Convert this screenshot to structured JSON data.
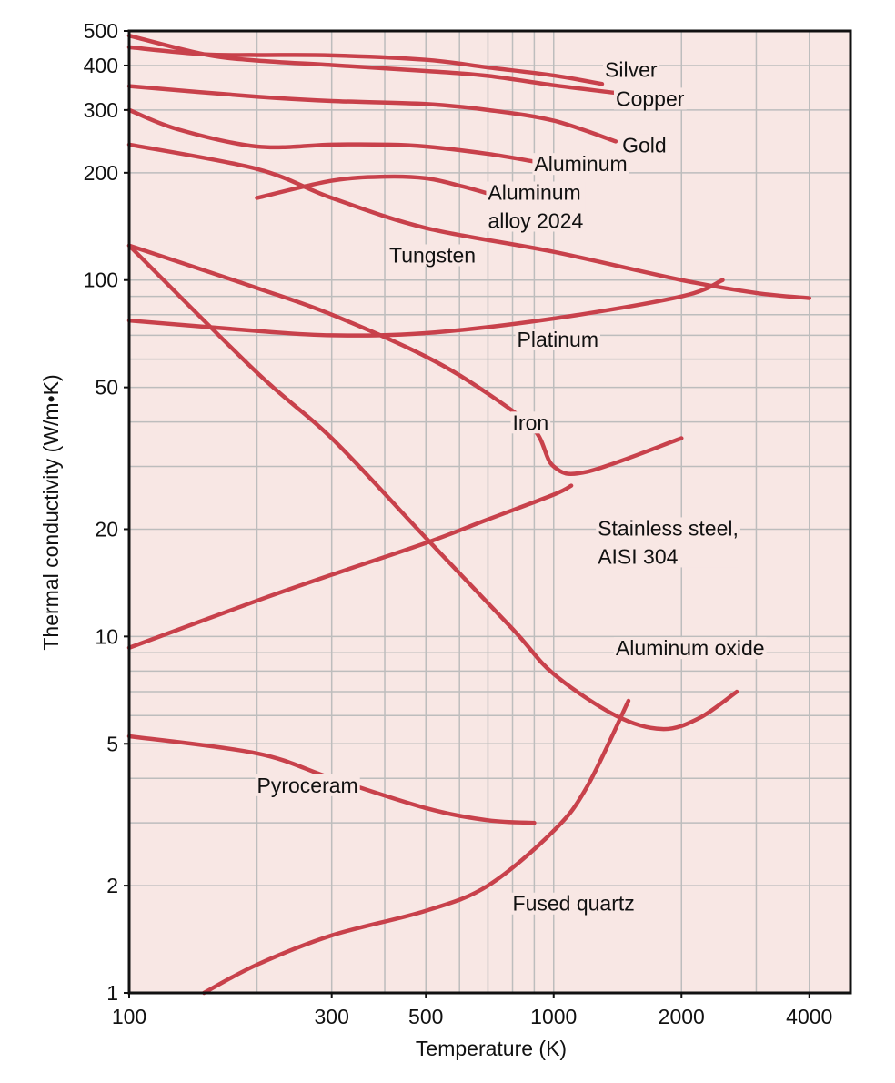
{
  "chart_data": {
    "type": "line",
    "title": "",
    "xlabel": "Temperature (K)",
    "ylabel": "Thermal conductivity (W/m•K)",
    "xscale": "log",
    "yscale": "log",
    "xlim": [
      100,
      5000
    ],
    "ylim": [
      1,
      500
    ],
    "grid": true,
    "legend": "none (labels placed next to curves)",
    "colors": {
      "line": "#c8414b",
      "background": "#f8e7e4",
      "grid": "#bdbdbd",
      "frame": "#111111"
    },
    "x_ticks": [
      {
        "label": "100",
        "value": 100
      },
      {
        "label": "300",
        "value": 300
      },
      {
        "label": "500",
        "value": 500
      },
      {
        "label": "1000",
        "value": 1000
      },
      {
        "label": "2000",
        "value": 2000
      },
      {
        "label": "4000",
        "value": 4000
      }
    ],
    "y_ticks": [
      {
        "label": "1",
        "value": 1
      },
      {
        "label": "2",
        "value": 2
      },
      {
        "label": "5",
        "value": 5
      },
      {
        "label": "10",
        "value": 10
      },
      {
        "label": "20",
        "value": 20
      },
      {
        "label": "50",
        "value": 50
      },
      {
        "label": "100",
        "value": 100
      },
      {
        "label": "200",
        "value": 200
      },
      {
        "label": "300",
        "value": 300
      },
      {
        "label": "400",
        "value": 400
      },
      {
        "label": "500",
        "value": 500
      }
    ],
    "x_grid": [
      200,
      300,
      400,
      500,
      600,
      700,
      800,
      900,
      1000,
      2000,
      3000,
      4000
    ],
    "y_grid": [
      2,
      3,
      4,
      5,
      6,
      7,
      8,
      9,
      10,
      20,
      30,
      40,
      50,
      60,
      70,
      80,
      90,
      100,
      200,
      300,
      400
    ],
    "series": [
      {
        "name": "Silver",
        "points": [
          [
            100,
            450
          ],
          [
            150,
            430
          ],
          [
            200,
            428
          ],
          [
            300,
            427
          ],
          [
            500,
            415
          ],
          [
            700,
            395
          ],
          [
            1000,
            375
          ],
          [
            1300,
            355
          ]
        ],
        "label": {
          "lines": [
            "Silver"
          ],
          "x": 1320,
          "y": 372
        }
      },
      {
        "name": "Copper",
        "points": [
          [
            100,
            485
          ],
          [
            150,
            430
          ],
          [
            200,
            413
          ],
          [
            300,
            401
          ],
          [
            500,
            386
          ],
          [
            700,
            374
          ],
          [
            1000,
            352
          ],
          [
            1400,
            335
          ]
        ],
        "label": {
          "lines": [
            "Copper"
          ],
          "x": 1400,
          "y": 308
        }
      },
      {
        "name": "Gold",
        "points": [
          [
            100,
            350
          ],
          [
            200,
            327
          ],
          [
            300,
            318
          ],
          [
            500,
            312
          ],
          [
            700,
            300
          ],
          [
            1000,
            280
          ],
          [
            1400,
            245
          ]
        ],
        "label": {
          "lines": [
            "Gold"
          ],
          "x": 1450,
          "y": 228
        }
      },
      {
        "name": "Aluminum",
        "points": [
          [
            100,
            300
          ],
          [
            130,
            265
          ],
          [
            200,
            237
          ],
          [
            300,
            240
          ],
          [
            400,
            240
          ],
          [
            500,
            237
          ],
          [
            700,
            226
          ],
          [
            900,
            215
          ]
        ],
        "label": {
          "lines": [
            "Aluminum"
          ],
          "x": 900,
          "y": 202
        }
      },
      {
        "name": "Aluminum alloy 2024",
        "points": [
          [
            200,
            170
          ],
          [
            300,
            190
          ],
          [
            400,
            195
          ],
          [
            500,
            193
          ],
          [
            600,
            184
          ],
          [
            700,
            175
          ]
        ],
        "label": {
          "lines": [
            "Aluminum",
            "alloy 2024"
          ],
          "x": 700,
          "y": 168
        }
      },
      {
        "name": "Tungsten",
        "points": [
          [
            100,
            240
          ],
          [
            200,
            205
          ],
          [
            300,
            170
          ],
          [
            500,
            140
          ],
          [
            1000,
            120
          ],
          [
            2000,
            100
          ],
          [
            3000,
            92
          ],
          [
            4000,
            89
          ]
        ],
        "label": {
          "lines": [
            "Tungsten"
          ],
          "x": 410,
          "y": 112
        }
      },
      {
        "name": "Platinum",
        "points": [
          [
            100,
            77
          ],
          [
            200,
            72
          ],
          [
            300,
            70
          ],
          [
            500,
            71
          ],
          [
            1000,
            78
          ],
          [
            2000,
            90
          ],
          [
            2500,
            100
          ]
        ],
        "label": {
          "lines": [
            "Platinum"
          ],
          "x": 820,
          "y": 65
        }
      },
      {
        "name": "Iron",
        "points": [
          [
            100,
            125
          ],
          [
            200,
            95
          ],
          [
            300,
            80
          ],
          [
            500,
            61
          ],
          [
            700,
            48
          ],
          [
            900,
            38
          ],
          [
            1000,
            30
          ],
          [
            1200,
            29
          ],
          [
            2000,
            36
          ]
        ],
        "label": {
          "lines": [
            "Iron"
          ],
          "x": 800,
          "y": 38
        }
      },
      {
        "name": "Stainless steel, AISI 304",
        "points": [
          [
            100,
            9.3
          ],
          [
            200,
            12.6
          ],
          [
            300,
            14.9
          ],
          [
            500,
            18.3
          ],
          [
            700,
            21.3
          ],
          [
            1000,
            25
          ],
          [
            1100,
            26.5
          ]
        ],
        "label": {
          "lines": [
            "Stainless steel,",
            "AISI 304"
          ],
          "x": 1270,
          "y": 19.2
        }
      },
      {
        "name": "Aluminum oxide",
        "points": [
          [
            100,
            125
          ],
          [
            200,
            55
          ],
          [
            300,
            36
          ],
          [
            500,
            18.9
          ],
          [
            800,
            10.5
          ],
          [
            1000,
            7.85
          ],
          [
            1400,
            6.0
          ],
          [
            1800,
            5.5
          ],
          [
            2200,
            5.9
          ],
          [
            2700,
            7.0
          ]
        ],
        "label": {
          "lines": [
            "Aluminum oxide"
          ],
          "x": 1400,
          "y": 8.85
        }
      },
      {
        "name": "Pyroceram",
        "points": [
          [
            100,
            5.25
          ],
          [
            200,
            4.7
          ],
          [
            300,
            4.0
          ],
          [
            500,
            3.3
          ],
          [
            700,
            3.05
          ],
          [
            900,
            3.0
          ]
        ],
        "label": {
          "lines": [
            "Pyroceram"
          ],
          "x": 200,
          "y": 3.65
        }
      },
      {
        "name": "Fused quartz",
        "points": [
          [
            150,
            1
          ],
          [
            200,
            1.2
          ],
          [
            300,
            1.45
          ],
          [
            500,
            1.7
          ],
          [
            700,
            2.0
          ],
          [
            1000,
            2.85
          ],
          [
            1200,
            3.8
          ],
          [
            1500,
            6.6
          ]
        ],
        "label": {
          "lines": [
            "Fused quartz"
          ],
          "x": 800,
          "y": 1.7
        }
      }
    ]
  }
}
